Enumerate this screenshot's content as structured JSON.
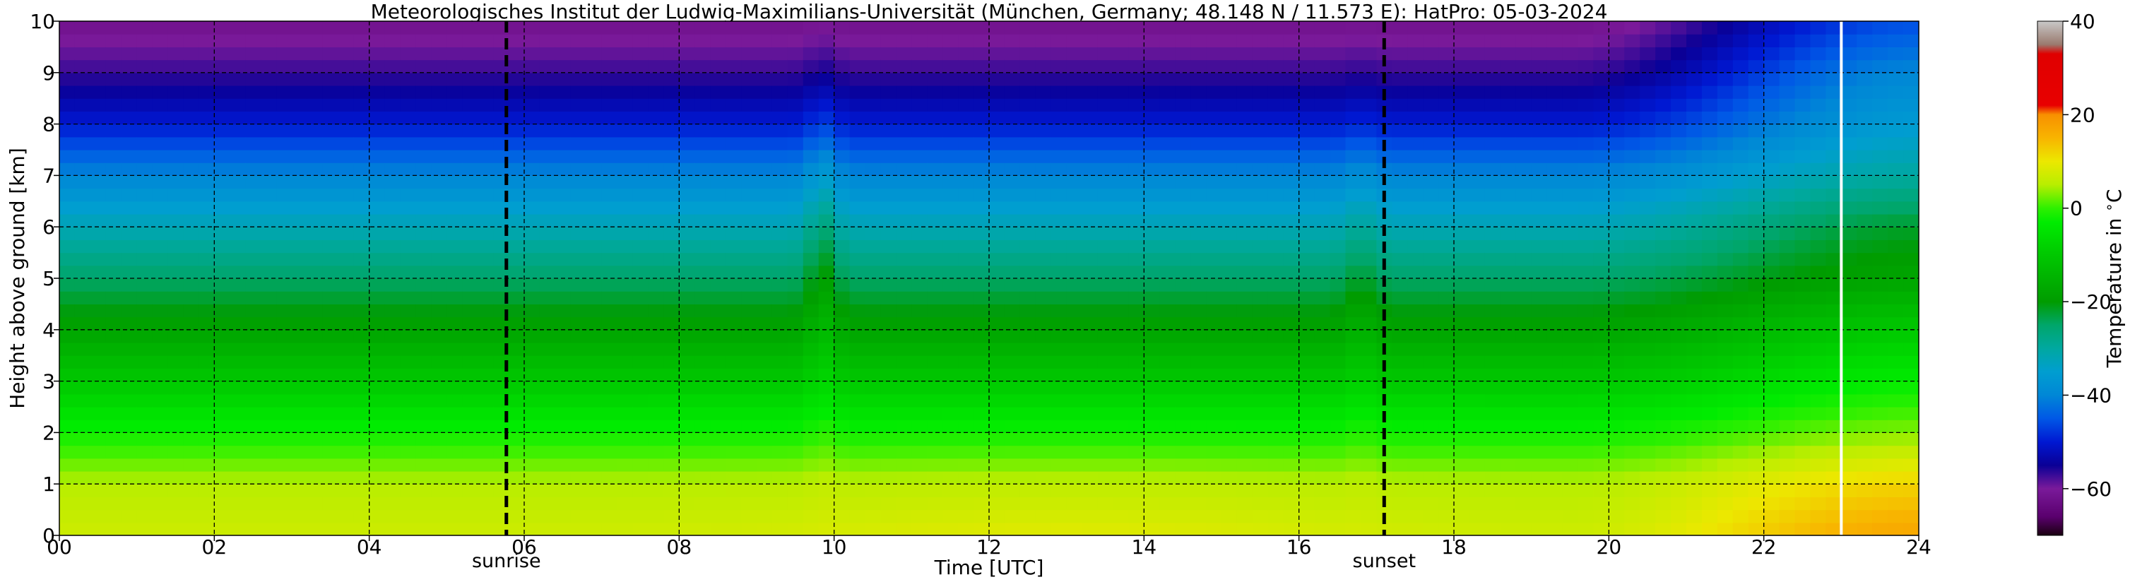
{
  "chart_data": {
    "type": "heatmap",
    "title": "Meteorologisches Institut der Ludwig-Maximilians-Universität (München, Germany; 48.148 N / 11.573 E):    HatPro: 05-03-2024",
    "xlabel": "Time [UTC]",
    "ylabel": "Height above ground [km]",
    "colorbar_label": "Temperature in $^\\circ$C",
    "xlim": [
      0,
      24
    ],
    "ylim": [
      0,
      10
    ],
    "clim": [
      -70,
      40
    ],
    "x_ticks": [
      0,
      2,
      4,
      6,
      8,
      10,
      12,
      14,
      16,
      18,
      20,
      22,
      24
    ],
    "x_tick_labels": [
      "00",
      "02",
      "04",
      "06",
      "08",
      "10",
      "12",
      "14",
      "16",
      "18",
      "20",
      "22",
      "24"
    ],
    "y_ticks": [
      0,
      1,
      2,
      3,
      4,
      5,
      6,
      7,
      8,
      9,
      10
    ],
    "y_tick_labels": [
      "0",
      "1",
      "2",
      "3",
      "4",
      "5",
      "6",
      "7",
      "8",
      "9",
      "10"
    ],
    "colorbar_ticks": [
      40,
      20,
      0,
      -20,
      -40,
      -60
    ],
    "colorbar_tick_labels": [
      "40",
      "20",
      "0",
      "−20",
      "−40",
      "−60"
    ],
    "colorbar_scale": [
      {
        "t": -70,
        "color": "#1a0010"
      },
      {
        "t": -66,
        "color": "#5a006e"
      },
      {
        "t": -60,
        "color": "#7a1a9a"
      },
      {
        "t": -55,
        "color": "#0a0096"
      },
      {
        "t": -50,
        "color": "#0018d2"
      },
      {
        "t": -45,
        "color": "#0058e6"
      },
      {
        "t": -40,
        "color": "#0087d6"
      },
      {
        "t": -35,
        "color": "#009ed0"
      },
      {
        "t": -30,
        "color": "#00a8a0"
      },
      {
        "t": -25,
        "color": "#00a66a"
      },
      {
        "t": -20,
        "color": "#009c00"
      },
      {
        "t": -10,
        "color": "#00c800"
      },
      {
        "t": -3,
        "color": "#00ec00"
      },
      {
        "t": 0,
        "color": "#2ef000"
      },
      {
        "t": 5,
        "color": "#b8ee00"
      },
      {
        "t": 10,
        "color": "#ece800"
      },
      {
        "t": 15,
        "color": "#f8b400"
      },
      {
        "t": 20,
        "color": "#f89000"
      },
      {
        "t": 22,
        "color": "#e80000"
      },
      {
        "t": 33,
        "color": "#e00000"
      },
      {
        "t": 35,
        "color": "#9a7a6e"
      },
      {
        "t": 40,
        "color": "#c8c8c8"
      }
    ],
    "vertical_markers": [
      {
        "x": 5.77,
        "label": "sunrise",
        "style": "dashed",
        "color": "#000000"
      },
      {
        "x": 17.1,
        "label": "sunset",
        "style": "dashed",
        "color": "#000000"
      },
      {
        "x": 23.0,
        "label": "",
        "style": "solid",
        "color": "#ffffff"
      }
    ],
    "temperature_profile_early": [
      {
        "height_km": 0,
        "temp_c": 7
      },
      {
        "height_km": 1,
        "temp_c": 5
      },
      {
        "height_km": 2,
        "temp_c": -2
      },
      {
        "height_km": 3,
        "temp_c": -10
      },
      {
        "height_km": 4,
        "temp_c": -18
      },
      {
        "height_km": 5,
        "temp_c": -25
      },
      {
        "height_km": 6,
        "temp_c": -32
      },
      {
        "height_km": 7,
        "temp_c": -40
      },
      {
        "height_km": 8,
        "temp_c": -50
      },
      {
        "height_km": 9,
        "temp_c": -57
      },
      {
        "height_km": 10,
        "temp_c": -62
      }
    ],
    "temperature_profile_late": [
      {
        "height_km": 0,
        "temp_c": 17
      },
      {
        "height_km": 1,
        "temp_c": 12
      },
      {
        "height_km": 2,
        "temp_c": 3
      },
      {
        "height_km": 3,
        "temp_c": -3
      },
      {
        "height_km": 4,
        "temp_c": -10
      },
      {
        "height_km": 5,
        "temp_c": -18
      },
      {
        "height_km": 6,
        "temp_c": -22
      },
      {
        "height_km": 7,
        "temp_c": -30
      },
      {
        "height_km": 8,
        "temp_c": -36
      },
      {
        "height_km": 9,
        "temp_c": -40
      },
      {
        "height_km": 10,
        "temp_c": -46
      }
    ],
    "grid": true
  }
}
